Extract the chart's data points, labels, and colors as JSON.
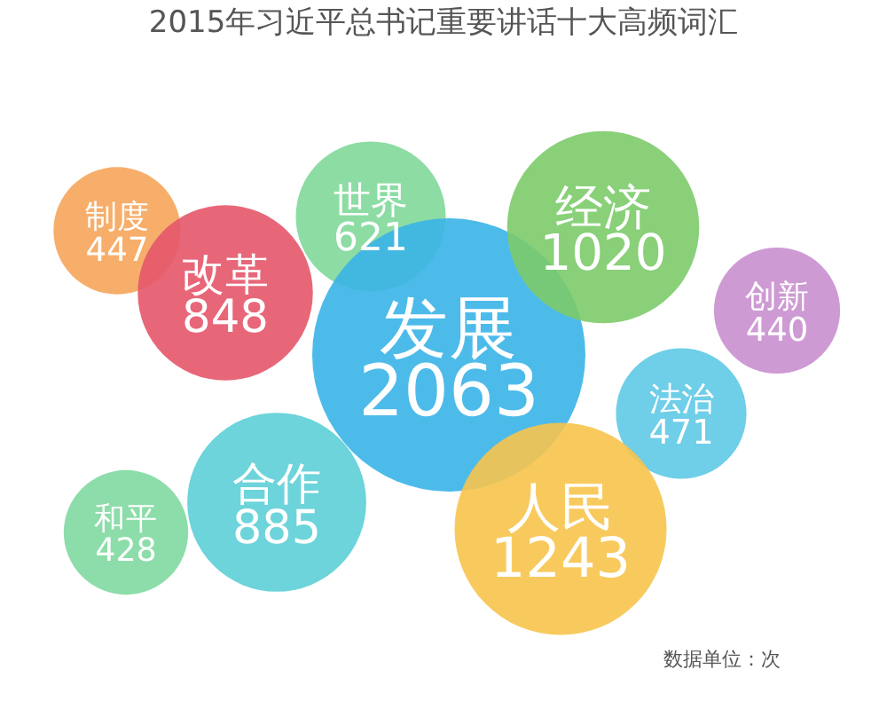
{
  "chart_data": {
    "type": "other",
    "title": "2015年习近平总书记重要讲话十大高频词汇",
    "categories": [
      "制度",
      "改革",
      "世界",
      "发展",
      "经济",
      "创新",
      "法治",
      "人民",
      "合作",
      "和平"
    ],
    "values": [
      447,
      848,
      621,
      2063,
      1020,
      440,
      471,
      1243,
      885,
      428
    ],
    "colors": [
      "#f5a55a",
      "#e4566a",
      "#7fd89a",
      "#3ab4e8",
      "#7ccb6a",
      "#c98fcf",
      "#5fc9e6",
      "#f7c44c",
      "#5ccfd6",
      "#7fd9a0"
    ],
    "data_labels": true,
    "annotations": [
      "数据单位：次"
    ]
  }
}
